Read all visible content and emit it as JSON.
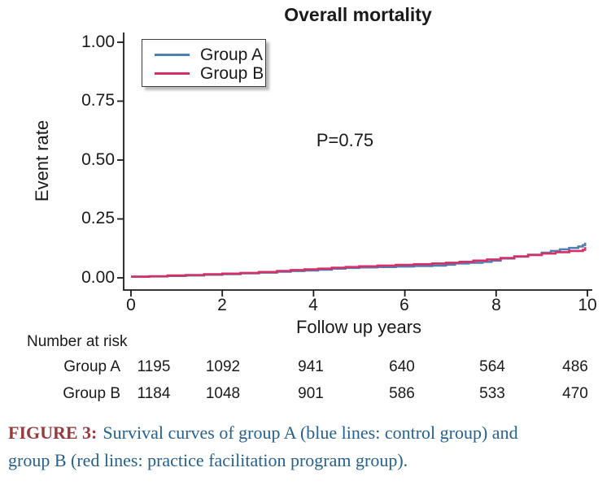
{
  "title": "Overall mortality",
  "annotation": "P=0.75",
  "legend": {
    "items": [
      {
        "label": "Group A",
        "color": "#4f7fb2"
      },
      {
        "label": "Group B",
        "color": "#d62e66"
      }
    ]
  },
  "axes": {
    "y_label": "Event rate",
    "x_label": "Follow up years",
    "y_tick_labels": [
      "1.00",
      "0.75",
      "0.50",
      "0.25",
      "0.00"
    ],
    "x_tick_labels": [
      "0",
      "2",
      "4",
      "6",
      "8",
      "10"
    ]
  },
  "risk_table": {
    "heading": "Number at risk",
    "rows": [
      {
        "label": "Group A",
        "values": [
          1195,
          1092,
          941,
          640,
          564,
          486
        ]
      },
      {
        "label": "Group B",
        "values": [
          1184,
          1048,
          901,
          586,
          533,
          470
        ]
      }
    ]
  },
  "caption": {
    "tag": "FIGURE 3:",
    "line1": "Survival curves of group A (blue lines: control group) and",
    "line2": "group B (red lines: practice facilitation program group).",
    "tag_color": "#963a3d",
    "text_color": "#26618f"
  },
  "chart_data": {
    "type": "line",
    "step": true,
    "title": "Overall mortality",
    "xlabel": "Follow up years",
    "ylabel": "Event rate",
    "xlim": [
      0,
      10
    ],
    "ylim": [
      0,
      1
    ],
    "x_ticks": [
      0,
      2,
      4,
      6,
      8,
      10
    ],
    "y_ticks": [
      0,
      0.25,
      0.5,
      0.75,
      1.0
    ],
    "grid": false,
    "legend_position": "top-left",
    "annotation": "P=0.75",
    "series": [
      {
        "name": "Group A",
        "color": "#4f7fb2",
        "points": [
          [
            0,
            0.005
          ],
          [
            0.4,
            0.006
          ],
          [
            0.8,
            0.008
          ],
          [
            1.2,
            0.01
          ],
          [
            1.6,
            0.013
          ],
          [
            2.0,
            0.016
          ],
          [
            2.4,
            0.019
          ],
          [
            2.8,
            0.022
          ],
          [
            3.2,
            0.026
          ],
          [
            3.5,
            0.029
          ],
          [
            3.8,
            0.031
          ],
          [
            4.1,
            0.035
          ],
          [
            4.4,
            0.039
          ],
          [
            4.7,
            0.042
          ],
          [
            5.0,
            0.044
          ],
          [
            5.4,
            0.046
          ],
          [
            5.8,
            0.048
          ],
          [
            6.2,
            0.05
          ],
          [
            6.6,
            0.052
          ],
          [
            6.9,
            0.056
          ],
          [
            7.1,
            0.061
          ],
          [
            7.4,
            0.064
          ],
          [
            7.7,
            0.068
          ],
          [
            7.9,
            0.073
          ],
          [
            8.1,
            0.082
          ],
          [
            8.4,
            0.09
          ],
          [
            8.7,
            0.098
          ],
          [
            9.0,
            0.107
          ],
          [
            9.2,
            0.114
          ],
          [
            9.4,
            0.121
          ],
          [
            9.6,
            0.127
          ],
          [
            9.8,
            0.133
          ],
          [
            9.9,
            0.139
          ],
          [
            9.95,
            0.149
          ]
        ]
      },
      {
        "name": "Group B",
        "color": "#d62e66",
        "points": [
          [
            0,
            0.005
          ],
          [
            0.4,
            0.007
          ],
          [
            0.8,
            0.01
          ],
          [
            1.2,
            0.012
          ],
          [
            1.6,
            0.015
          ],
          [
            2.0,
            0.018
          ],
          [
            2.4,
            0.021
          ],
          [
            2.8,
            0.025
          ],
          [
            3.2,
            0.029
          ],
          [
            3.5,
            0.033
          ],
          [
            3.8,
            0.036
          ],
          [
            4.1,
            0.039
          ],
          [
            4.4,
            0.043
          ],
          [
            4.7,
            0.046
          ],
          [
            5.0,
            0.049
          ],
          [
            5.4,
            0.052
          ],
          [
            5.8,
            0.055
          ],
          [
            6.2,
            0.058
          ],
          [
            6.6,
            0.061
          ],
          [
            6.9,
            0.064
          ],
          [
            7.2,
            0.068
          ],
          [
            7.5,
            0.073
          ],
          [
            7.8,
            0.078
          ],
          [
            8.1,
            0.084
          ],
          [
            8.4,
            0.091
          ],
          [
            8.7,
            0.097
          ],
          [
            9.0,
            0.103
          ],
          [
            9.3,
            0.109
          ],
          [
            9.6,
            0.114
          ],
          [
            9.9,
            0.119
          ],
          [
            9.95,
            0.13
          ]
        ]
      }
    ]
  }
}
